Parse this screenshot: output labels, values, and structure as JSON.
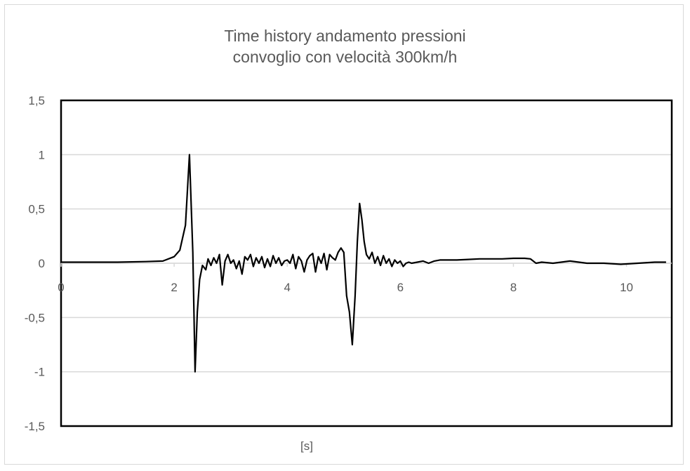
{
  "chart_data": {
    "type": "line",
    "title_lines": [
      "Time history andamento pressioni",
      "convoglio con velocità 300km/h"
    ],
    "xlabel": "[s]",
    "ylabel": "",
    "xlim": [
      0,
      10.8
    ],
    "ylim": [
      -1.5,
      1.5
    ],
    "x_ticks": [
      {
        "value": 0,
        "label": "0"
      },
      {
        "value": 2,
        "label": "2"
      },
      {
        "value": 4,
        "label": "4"
      },
      {
        "value": 6,
        "label": "6"
      },
      {
        "value": 8,
        "label": "8"
      },
      {
        "value": 10,
        "label": "10"
      }
    ],
    "y_ticks": [
      {
        "value": 1.5,
        "label": "1,5"
      },
      {
        "value": 1,
        "label": "1"
      },
      {
        "value": 0.5,
        "label": "0,5"
      },
      {
        "value": 0,
        "label": "0"
      },
      {
        "value": -0.5,
        "label": "-0,5"
      },
      {
        "value": -1,
        "label": "-1"
      },
      {
        "value": -1.5,
        "label": "-1,5"
      }
    ],
    "grid": true,
    "legend": "none",
    "colors": {
      "line": "#000000",
      "grid": "#d9d9d9",
      "text": "#595959"
    },
    "series": [
      {
        "x": [
          0,
          0.5,
          1.0,
          1.5,
          1.8,
          2.0,
          2.1,
          2.2,
          2.27,
          2.33,
          2.37,
          2.41,
          2.45,
          2.5,
          2.56,
          2.6,
          2.65,
          2.7,
          2.75,
          2.8,
          2.85,
          2.9,
          2.95,
          3.0,
          3.05,
          3.1,
          3.15,
          3.2,
          3.25,
          3.3,
          3.35,
          3.4,
          3.45,
          3.5,
          3.55,
          3.6,
          3.65,
          3.7,
          3.75,
          3.8,
          3.85,
          3.9,
          3.95,
          4.0,
          4.05,
          4.1,
          4.15,
          4.2,
          4.25,
          4.3,
          4.35,
          4.4,
          4.45,
          4.5,
          4.55,
          4.6,
          4.65,
          4.7,
          4.75,
          4.8,
          4.85,
          4.9,
          4.95,
          5.0,
          5.05,
          5.1,
          5.15,
          5.2,
          5.24,
          5.28,
          5.32,
          5.36,
          5.4,
          5.45,
          5.5,
          5.55,
          5.6,
          5.65,
          5.7,
          5.75,
          5.8,
          5.85,
          5.9,
          5.95,
          6.0,
          6.05,
          6.1,
          6.15,
          6.2,
          6.3,
          6.4,
          6.5,
          6.6,
          6.7,
          6.8,
          7.0,
          7.2,
          7.4,
          7.6,
          7.8,
          8.0,
          8.2,
          8.3,
          8.4,
          8.5,
          8.7,
          9.0,
          9.3,
          9.6,
          9.9,
          10.2,
          10.5,
          10.7
        ],
        "y": [
          0.01,
          0.01,
          0.01,
          0.015,
          0.02,
          0.06,
          0.12,
          0.35,
          1.0,
          0.1,
          -1.0,
          -0.45,
          -0.15,
          -0.02,
          -0.06,
          0.04,
          -0.02,
          0.05,
          0.0,
          0.08,
          -0.2,
          0.02,
          0.08,
          0.0,
          0.03,
          -0.05,
          0.02,
          -0.1,
          0.06,
          0.03,
          0.08,
          -0.03,
          0.05,
          0.0,
          0.06,
          -0.04,
          0.04,
          -0.03,
          0.07,
          0.0,
          0.05,
          -0.02,
          0.02,
          0.03,
          0.0,
          0.08,
          -0.05,
          0.06,
          0.02,
          -0.08,
          0.03,
          0.07,
          0.09,
          -0.08,
          0.06,
          0.0,
          0.09,
          -0.06,
          0.08,
          0.05,
          0.03,
          0.1,
          0.14,
          0.1,
          -0.3,
          -0.45,
          -0.75,
          -0.3,
          0.2,
          0.55,
          0.4,
          0.2,
          0.08,
          0.04,
          0.1,
          0.0,
          0.06,
          -0.02,
          0.07,
          0.0,
          0.04,
          -0.03,
          0.03,
          0.0,
          0.02,
          -0.03,
          0.0,
          0.01,
          0.0,
          0.01,
          0.02,
          0.0,
          0.02,
          0.03,
          0.03,
          0.03,
          0.035,
          0.04,
          0.04,
          0.04,
          0.045,
          0.045,
          0.04,
          0.0,
          0.01,
          0.0,
          0.02,
          0.0,
          0.0,
          -0.01,
          0.0,
          0.01,
          0.01
        ]
      }
    ]
  }
}
